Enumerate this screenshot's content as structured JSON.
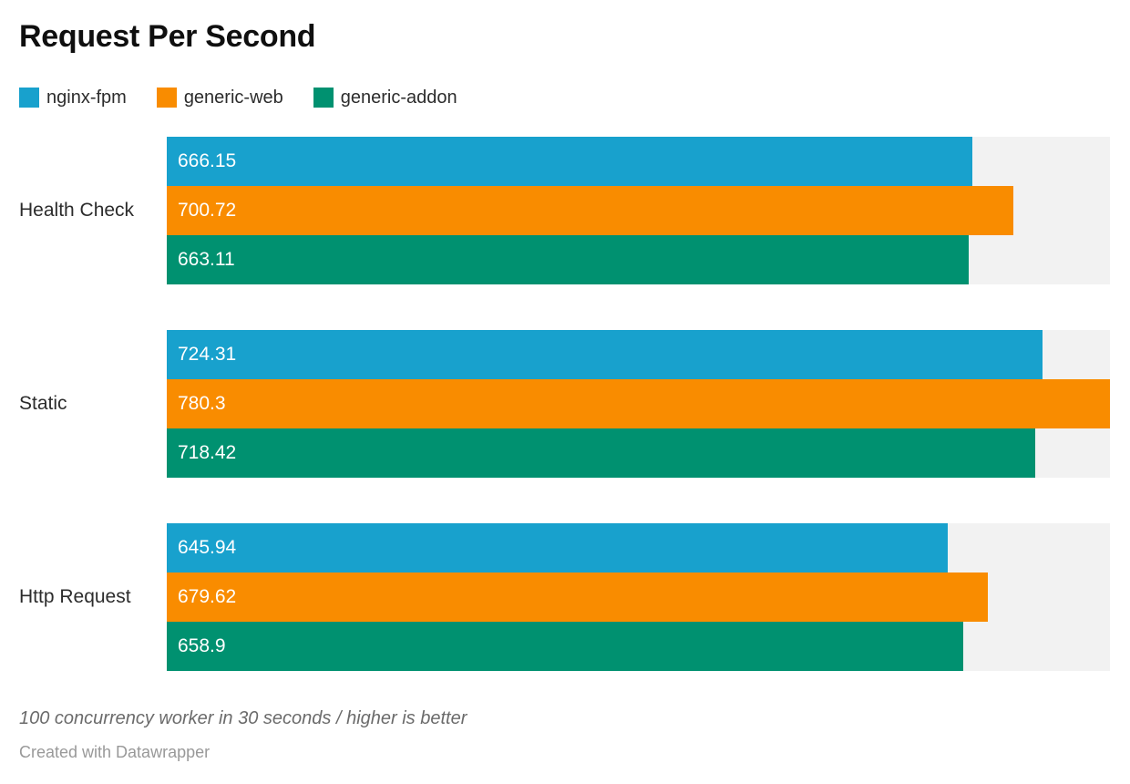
{
  "header": {
    "title": "Request Per Second"
  },
  "footer": {
    "note": "100 concurrency worker in 30 seconds / higher is better",
    "attribution": "Created with Datawrapper"
  },
  "colors": {
    "track": "#f2f2f2",
    "value_text": "#ffffff",
    "label_text": "#2c2c2c"
  },
  "chart_data": {
    "type": "bar",
    "orientation": "horizontal",
    "title": "Request Per Second",
    "categories": [
      "Health Check",
      "Static",
      "Http Request"
    ],
    "series": [
      {
        "name": "nginx-fpm",
        "color": "#18a1cd",
        "values": [
          666.15,
          724.31,
          645.94
        ],
        "labels": [
          "666.15",
          "724.31",
          "645.94"
        ]
      },
      {
        "name": "generic-web",
        "color": "#f98c00",
        "values": [
          700.72,
          780.3,
          679.62
        ],
        "labels": [
          "700.72",
          "780.3",
          "679.62"
        ]
      },
      {
        "name": "generic-addon",
        "color": "#009170",
        "values": [
          663.11,
          718.42,
          658.9
        ],
        "labels": [
          "663.11",
          "718.42",
          "658.9"
        ]
      }
    ],
    "xlim": [
      0,
      780.3
    ],
    "xmax": 780.3,
    "grid": false,
    "value_labels_inside": true,
    "legend_position": "top",
    "note": "100 concurrency worker in 30 seconds / higher is better"
  }
}
